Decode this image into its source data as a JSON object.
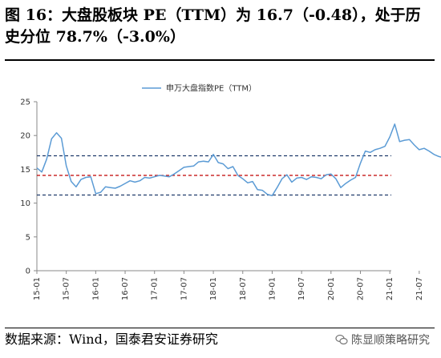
{
  "title": "图 16：大盘股板块 PE（TTM）为 16.7（-0.48），处于历史分位 78.7%（-3.0%）",
  "source": "数据来源：Wind，国泰君安证券研究",
  "watermark": "陈显顺策略研究",
  "colors": {
    "series": "#5b9bd5",
    "ref_line_outer": "#1f3a6b",
    "ref_line_mid": "#c00000",
    "axis": "#888888"
  },
  "chart_data": {
    "type": "line",
    "legend_position": "top-center",
    "ylim": [
      0,
      25
    ],
    "yticks": [
      0,
      5,
      10,
      15,
      20,
      25
    ],
    "xticks": [
      "15-01",
      "15-07",
      "16-01",
      "16-07",
      "17-01",
      "17-07",
      "18-01",
      "18-07",
      "19-01",
      "19-07",
      "20-01",
      "20-07",
      "21-01",
      "21-07"
    ],
    "reference_lines": [
      {
        "value": 17.0,
        "style": "dashed"
      },
      {
        "value": 14.1,
        "style": "dashed"
      },
      {
        "value": 11.2,
        "style": "dashed"
      }
    ],
    "series": [
      {
        "name": "申万大盘指数PE（TTM）",
        "points": [
          [
            "15-01",
            15.2
          ],
          [
            "15-02",
            14.6
          ],
          [
            "15-03",
            16.5
          ],
          [
            "15-04",
            19.5
          ],
          [
            "15-05",
            20.4
          ],
          [
            "15-06",
            19.6
          ],
          [
            "15-07",
            15.5
          ],
          [
            "15-08",
            13.2
          ],
          [
            "15-09",
            12.4
          ],
          [
            "15-10",
            13.5
          ],
          [
            "15-11",
            13.8
          ],
          [
            "15-12",
            13.9
          ],
          [
            "16-01",
            11.4
          ],
          [
            "16-02",
            11.6
          ],
          [
            "16-03",
            12.4
          ],
          [
            "16-04",
            12.3
          ],
          [
            "16-05",
            12.2
          ],
          [
            "16-06",
            12.5
          ],
          [
            "16-07",
            12.9
          ],
          [
            "16-08",
            13.3
          ],
          [
            "16-09",
            13.1
          ],
          [
            "16-10",
            13.3
          ],
          [
            "16-11",
            13.8
          ],
          [
            "16-12",
            13.7
          ],
          [
            "17-01",
            13.9
          ],
          [
            "17-02",
            14.1
          ],
          [
            "17-03",
            14.0
          ],
          [
            "17-04",
            13.9
          ],
          [
            "17-05",
            14.3
          ],
          [
            "17-06",
            14.8
          ],
          [
            "17-07",
            15.3
          ],
          [
            "17-08",
            15.4
          ],
          [
            "17-09",
            15.5
          ],
          [
            "17-10",
            16.1
          ],
          [
            "17-11",
            16.2
          ],
          [
            "17-12",
            16.1
          ],
          [
            "18-01",
            17.2
          ],
          [
            "18-02",
            16.0
          ],
          [
            "18-03",
            15.8
          ],
          [
            "18-04",
            15.1
          ],
          [
            "18-05",
            15.4
          ],
          [
            "18-06",
            14.1
          ],
          [
            "18-07",
            13.6
          ],
          [
            "18-08",
            13.0
          ],
          [
            "18-09",
            13.2
          ],
          [
            "18-10",
            12.0
          ],
          [
            "18-11",
            11.9
          ],
          [
            "18-12",
            11.3
          ],
          [
            "19-01",
            11.1
          ],
          [
            "19-02",
            12.3
          ],
          [
            "19-03",
            13.6
          ],
          [
            "19-04",
            14.2
          ],
          [
            "19-05",
            13.1
          ],
          [
            "19-06",
            13.7
          ],
          [
            "19-07",
            13.8
          ],
          [
            "19-08",
            13.5
          ],
          [
            "19-09",
            13.9
          ],
          [
            "19-10",
            13.8
          ],
          [
            "19-11",
            13.6
          ],
          [
            "19-12",
            14.2
          ],
          [
            "20-01",
            14.3
          ],
          [
            "20-02",
            13.6
          ],
          [
            "20-03",
            12.3
          ],
          [
            "20-04",
            12.9
          ],
          [
            "20-05",
            13.4
          ],
          [
            "20-06",
            13.8
          ],
          [
            "20-07",
            15.9
          ],
          [
            "20-08",
            17.7
          ],
          [
            "20-09",
            17.5
          ],
          [
            "20-10",
            17.9
          ],
          [
            "20-11",
            18.1
          ],
          [
            "20-12",
            18.4
          ],
          [
            "21-01",
            19.8
          ],
          [
            "21-02",
            21.7
          ],
          [
            "21-03",
            19.1
          ],
          [
            "21-04",
            19.3
          ],
          [
            "21-05",
            19.4
          ],
          [
            "21-06",
            18.6
          ],
          [
            "21-07",
            17.9
          ],
          [
            "21-08",
            18.1
          ],
          [
            "21-09",
            17.7
          ],
          [
            "21-10",
            17.2
          ],
          [
            "21-11",
            16.9
          ],
          [
            "21-12",
            16.7
          ]
        ]
      }
    ]
  }
}
